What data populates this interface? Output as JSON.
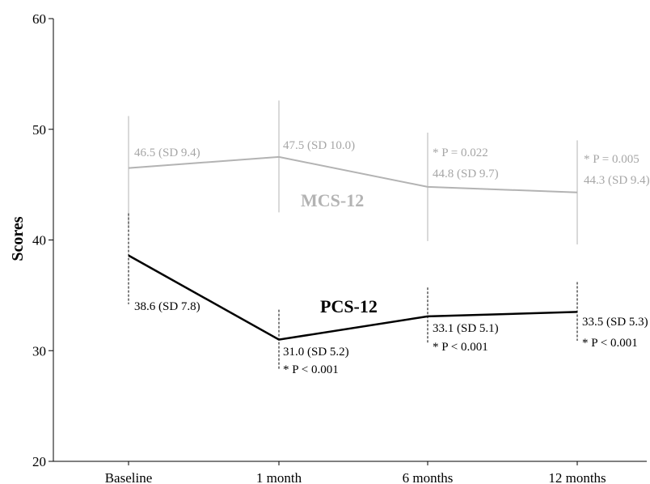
{
  "chart_data": {
    "type": "line",
    "categories": [
      "Baseline",
      "1 month",
      "6 months",
      "12 months"
    ],
    "ylabel": "Scores",
    "ylim": [
      20,
      60
    ],
    "yticks": [
      20,
      30,
      40,
      50,
      60
    ],
    "grid": false,
    "colors": {
      "MCS-12": "#b3b3b3",
      "PCS-12": "#000000"
    },
    "series": [
      {
        "name": "MCS-12",
        "values": [
          46.5,
          47.5,
          44.8,
          44.3
        ],
        "error_range": [
          [
            41.3,
            51.2
          ],
          [
            42.5,
            52.6
          ],
          [
            39.9,
            49.7
          ],
          [
            39.6,
            49.0
          ]
        ],
        "labels": [
          "46.5 (SD 9.4)",
          "47.5 (SD 10.0)",
          "44.8 (SD 9.7)",
          "44.3 (SD 9.4)"
        ],
        "pvalues": [
          "",
          "",
          "* P = 0.022",
          "* P = 0.005"
        ]
      },
      {
        "name": "PCS-12",
        "values": [
          38.6,
          31.0,
          33.1,
          33.5
        ],
        "error_range": [
          [
            34.2,
            42.4
          ],
          [
            28.3,
            33.7
          ],
          [
            30.6,
            35.7
          ],
          [
            30.9,
            36.2
          ]
        ],
        "labels": [
          "38.6 (SD 7.8)",
          "31.0 (SD 5.2)",
          "33.1 (SD 5.1)",
          "33.5 (SD 5.3)"
        ],
        "pvalues": [
          "",
          "* P < 0.001",
          "* P < 0.001",
          "* P < 0.001"
        ]
      }
    ]
  }
}
